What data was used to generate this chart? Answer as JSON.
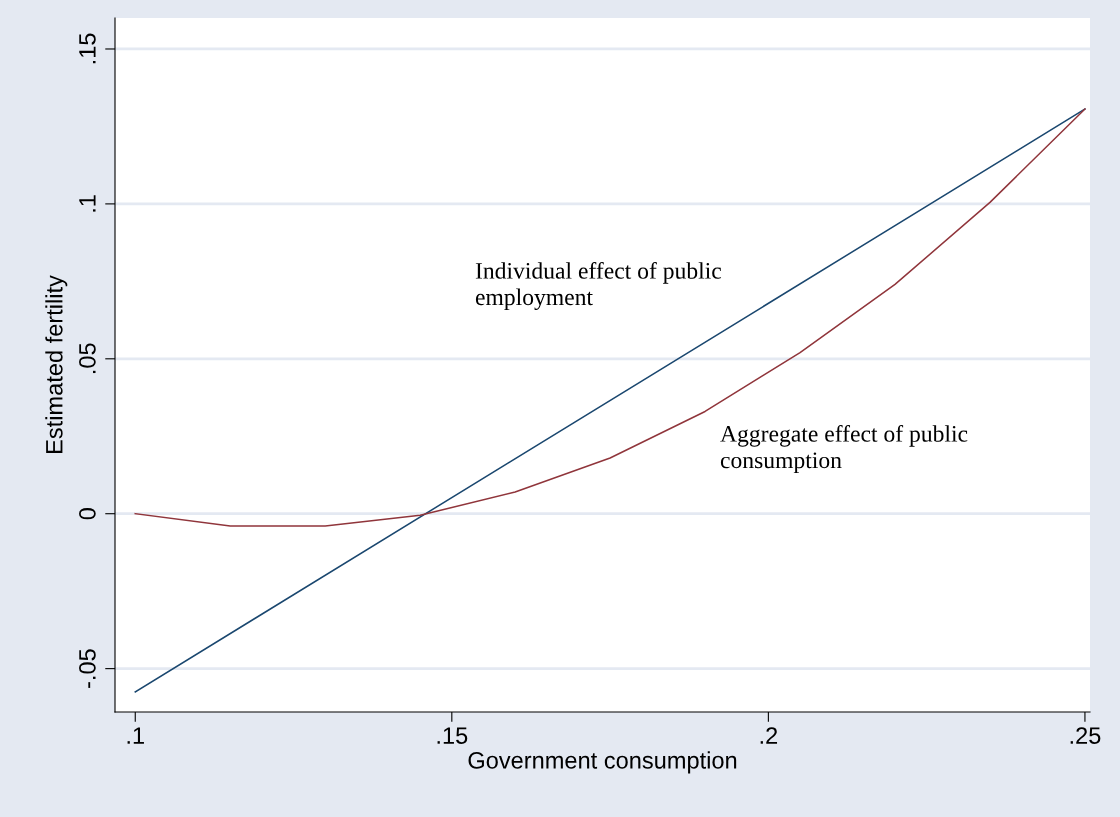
{
  "chart_data": {
    "type": "line",
    "xlabel": "Government consumption",
    "ylabel": "Estimated fertility",
    "series": [
      {
        "color": "#1a476f",
        "x": [
          0.1,
          0.25
        ],
        "values": [
          -0.0575,
          0.1306
        ]
      },
      {
        "color": "#90353b",
        "x": [
          0.1,
          0.115,
          0.13,
          0.145,
          0.16,
          0.175,
          0.19,
          0.205,
          0.22,
          0.235,
          0.25
        ],
        "values": [
          0.0,
          -0.004,
          -0.004,
          -0.0005,
          0.007,
          0.018,
          0.033,
          0.052,
          0.074,
          0.1005,
          0.1306
        ]
      }
    ],
    "annotations": [
      "Individual effect of public\nemployment",
      "Aggregate effect of public\nconsumption"
    ],
    "xlim": [
      0.0968,
      0.2508
    ],
    "ylim": [
      -0.064,
      0.16
    ],
    "xticks": [
      {
        "value": 0.1,
        "label": ".1"
      },
      {
        "value": 0.15,
        "label": ".15"
      },
      {
        "value": 0.2,
        "label": ".2"
      },
      {
        "value": 0.25,
        "label": ".25"
      }
    ],
    "yticks": [
      {
        "value": -0.05,
        "label": "-.05"
      },
      {
        "value": 0,
        "label": "0"
      },
      {
        "value": 0.05,
        "label": ".05"
      },
      {
        "value": 0.1,
        "label": ".1"
      },
      {
        "value": 0.15,
        "label": ".15"
      }
    ],
    "grid": "y",
    "legend": false,
    "marker": "none",
    "line_style": "solid"
  }
}
